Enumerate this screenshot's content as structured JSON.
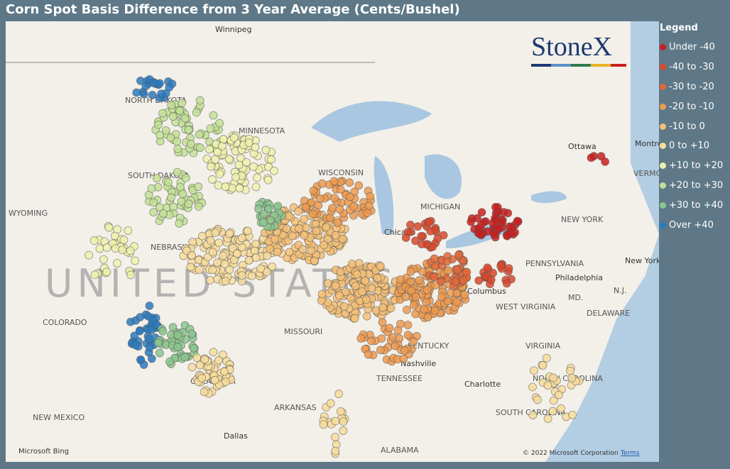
{
  "title": "Corn Spot Basis Difference from 3 Year Average (Cents/Bushel)",
  "legend": {
    "title": "Legend",
    "items": [
      {
        "label": "Under -40",
        "color": "#c8201f"
      },
      {
        "label": "-40 to -30",
        "color": "#d8482c"
      },
      {
        "label": "-30 to -20",
        "color": "#e0683a"
      },
      {
        "label": "-20 to -10",
        "color": "#ec9a50"
      },
      {
        "label": "-10 to 0",
        "color": "#f3bf78"
      },
      {
        "label": "0 to +10",
        "color": "#f7dc9c"
      },
      {
        "label": "+10 to +20",
        "color": "#eef1ad"
      },
      {
        "label": "+20 to +30",
        "color": "#c3e096"
      },
      {
        "label": "+30 to +40",
        "color": "#8cc68e"
      },
      {
        "label": "Over +40",
        "color": "#2b7bbf"
      }
    ]
  },
  "logo": "StoneX",
  "map_labels": [
    "Winnipeg",
    "NORTH DAKOTA",
    "MINNESOTA",
    "SOUTH DAKOTA",
    "WYOMING",
    "NEBRASKA",
    "COLORADO",
    "MISSOURI",
    "KENTUCKY",
    "TENNESSEE",
    "Nashville",
    "OKLAHOMA",
    "ARKANSAS",
    "NEW MEXICO",
    "Dallas",
    "ALABAMA",
    "Chicago",
    "MICHIGAN",
    "Columbus",
    "WEST VIRGINIA",
    "VIRGINIA",
    "NORTH CAROLINA",
    "SOUTH CAROLINA",
    "Charlotte",
    "PENNSYLVANIA",
    "Philadelphia",
    "NEW YORK",
    "Ottawa",
    "Montreal",
    "New York",
    "MD.",
    "DELAWARE",
    "N.J.",
    "VERMONT",
    "WISCONSIN",
    "UNITED STATES"
  ],
  "attribution": {
    "provider": "Microsoft Bing",
    "copyright": "© 2022 Microsoft Corporation",
    "terms": "Terms"
  }
}
